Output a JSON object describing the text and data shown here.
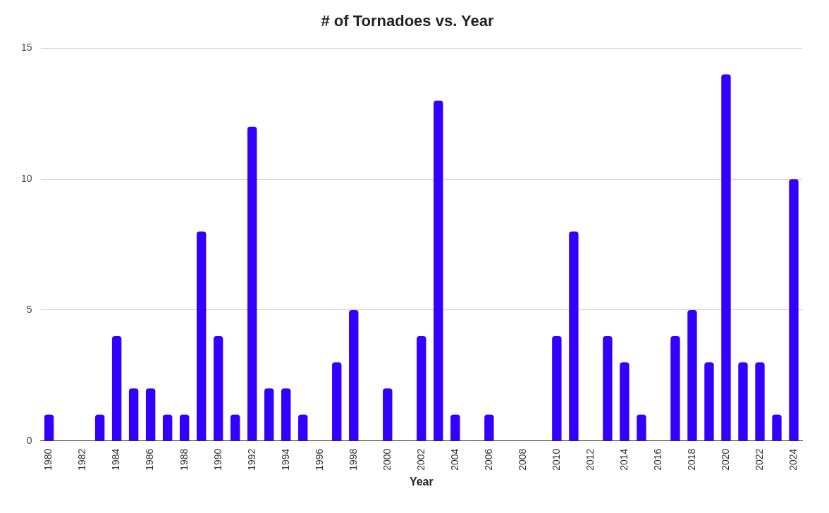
{
  "chart_data": {
    "type": "bar",
    "title": "# of Tornadoes vs. Year",
    "xlabel": "Year",
    "categories": [
      "1980",
      null,
      "1982",
      null,
      "1984",
      null,
      "1986",
      null,
      "1988",
      null,
      "1990",
      null,
      "1992",
      null,
      "1994",
      null,
      "1996",
      null,
      "1998",
      null,
      "2000",
      null,
      "2002",
      null,
      "2004",
      null,
      "2006",
      null,
      "2008",
      null,
      "2010",
      null,
      "2012",
      null,
      "2014",
      null,
      "2016",
      null,
      "2018",
      null,
      "2020",
      null,
      "2022",
      null,
      "2024"
    ],
    "values": [
      1,
      0,
      0,
      1,
      4,
      2,
      2,
      1,
      1,
      8,
      4,
      1,
      12,
      2,
      2,
      1,
      0,
      3,
      5,
      0,
      2,
      0,
      4,
      13,
      1,
      0,
      1,
      0,
      0,
      0,
      4,
      8,
      0,
      4,
      3,
      1,
      0,
      4,
      5,
      3,
      14,
      3,
      3,
      1,
      10
    ],
    "color": "#3300ff",
    "ylim": [
      0,
      15
    ],
    "yticks": [
      0,
      5,
      10,
      15
    ],
    "grid": "y",
    "legend": false
  }
}
